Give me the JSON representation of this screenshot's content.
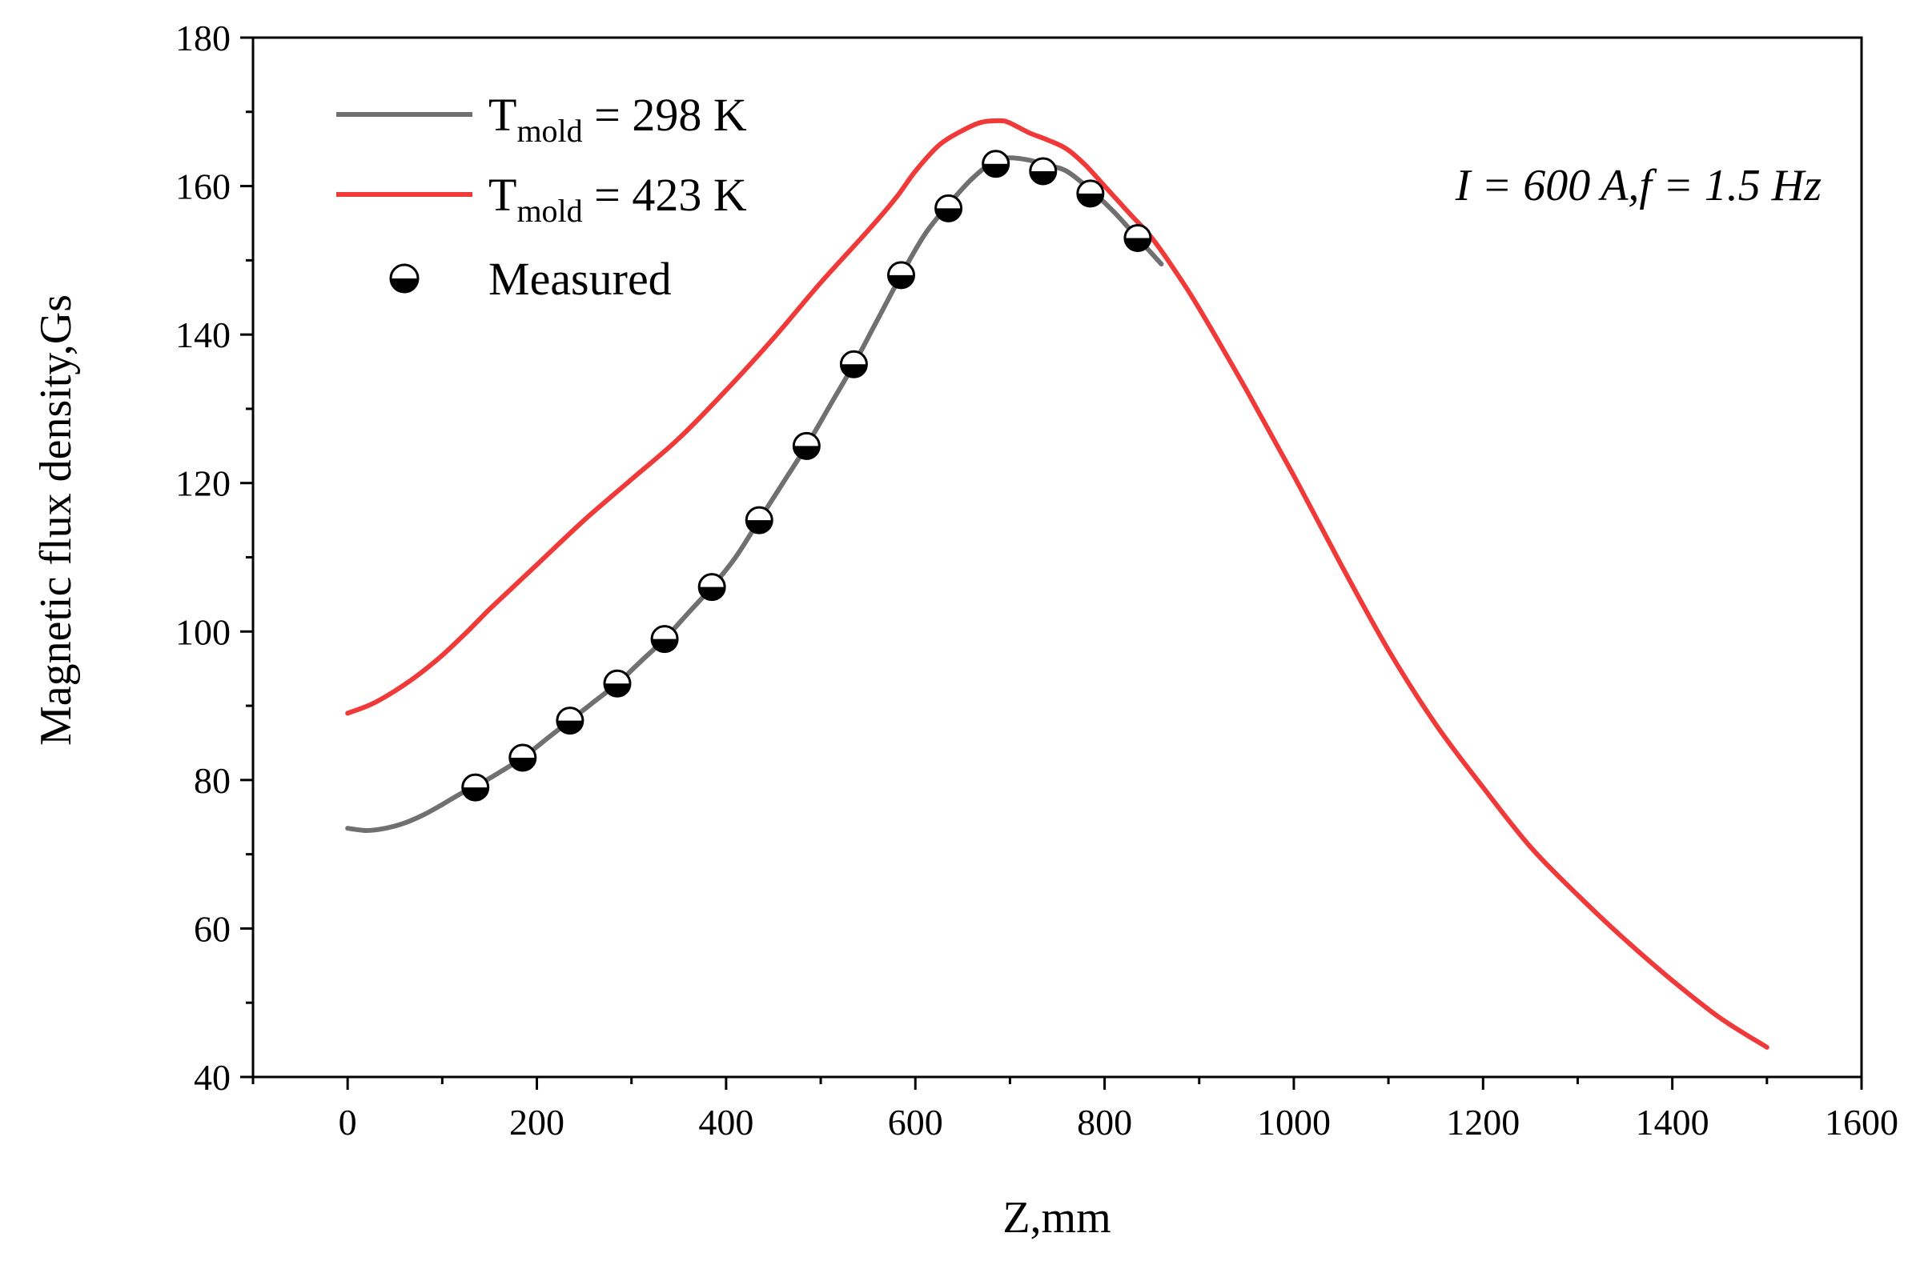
{
  "chart_data": {
    "type": "line",
    "title": "",
    "xlabel": "Z,mm",
    "ylabel": "Magnetic flux density,Gs",
    "xlim": [
      -100,
      1600
    ],
    "ylim": [
      40,
      180
    ],
    "xticks": [
      0,
      200,
      400,
      600,
      800,
      1000,
      1200,
      1400,
      1600
    ],
    "yticks": [
      40,
      60,
      80,
      100,
      120,
      140,
      160,
      180
    ],
    "grid": false,
    "legend_position": "top-left",
    "annotation": "I = 600 A,f = 1.5 Hz",
    "series": [
      {
        "name": "T_mold = 298 K",
        "name_main": "T",
        "name_sub": "mold",
        "name_rest": " = 298 K",
        "style": "line",
        "color": "#707070",
        "x": [
          0,
          20,
          40,
          60,
          80,
          100,
          120,
          140,
          160,
          185,
          210,
          235,
          260,
          285,
          310,
          335,
          360,
          385,
          410,
          435,
          460,
          485,
          510,
          535,
          560,
          585,
          610,
          635,
          660,
          685,
          700,
          720,
          740,
          760,
          785,
          810,
          835,
          860
        ],
        "y": [
          73.5,
          73.2,
          73.5,
          74.2,
          75.3,
          76.7,
          78.2,
          79.5,
          81.0,
          83.0,
          85.5,
          88.0,
          90.5,
          93.0,
          96.0,
          99.0,
          102.5,
          106.0,
          110.0,
          115.0,
          120.0,
          125.0,
          130.5,
          136.0,
          142.0,
          148.0,
          153.5,
          157.5,
          161.0,
          163.5,
          163.8,
          163.5,
          162.8,
          162.0,
          159.5,
          156.5,
          153.0,
          149.5
        ]
      },
      {
        "name": "T_mold = 423 K",
        "name_main": "T",
        "name_sub": "mold",
        "name_rest": " = 423 K",
        "style": "line",
        "color": "#f03a3a",
        "x": [
          0,
          25,
          50,
          75,
          100,
          125,
          150,
          175,
          200,
          250,
          300,
          350,
          400,
          450,
          500,
          550,
          580,
          600,
          625,
          650,
          670,
          690,
          700,
          720,
          740,
          760,
          780,
          800,
          825,
          850,
          875,
          900,
          950,
          1000,
          1050,
          1100,
          1150,
          1200,
          1250,
          1300,
          1350,
          1400,
          1450,
          1500
        ],
        "y": [
          89.0,
          90.2,
          92.0,
          94.2,
          96.8,
          99.8,
          103.0,
          106.0,
          109.0,
          115.0,
          120.5,
          126.0,
          132.5,
          139.5,
          147.0,
          154.0,
          158.5,
          162.0,
          165.5,
          167.5,
          168.6,
          168.8,
          168.5,
          167.2,
          166.2,
          165.0,
          162.8,
          160.0,
          156.5,
          153.0,
          148.5,
          143.5,
          132.5,
          121.0,
          109.0,
          97.5,
          87.5,
          79.0,
          71.0,
          64.5,
          58.5,
          53.0,
          48.0,
          44.0
        ]
      },
      {
        "name": "Measured",
        "style": "markers",
        "marker": "half-filled-circle",
        "x": [
          135,
          185,
          235,
          285,
          335,
          385,
          435,
          485,
          535,
          585,
          635,
          685,
          735,
          785,
          835
        ],
        "y": [
          79,
          83,
          88,
          93,
          99,
          106,
          115,
          125,
          136,
          148,
          157,
          163,
          162,
          159,
          153
        ]
      }
    ]
  }
}
